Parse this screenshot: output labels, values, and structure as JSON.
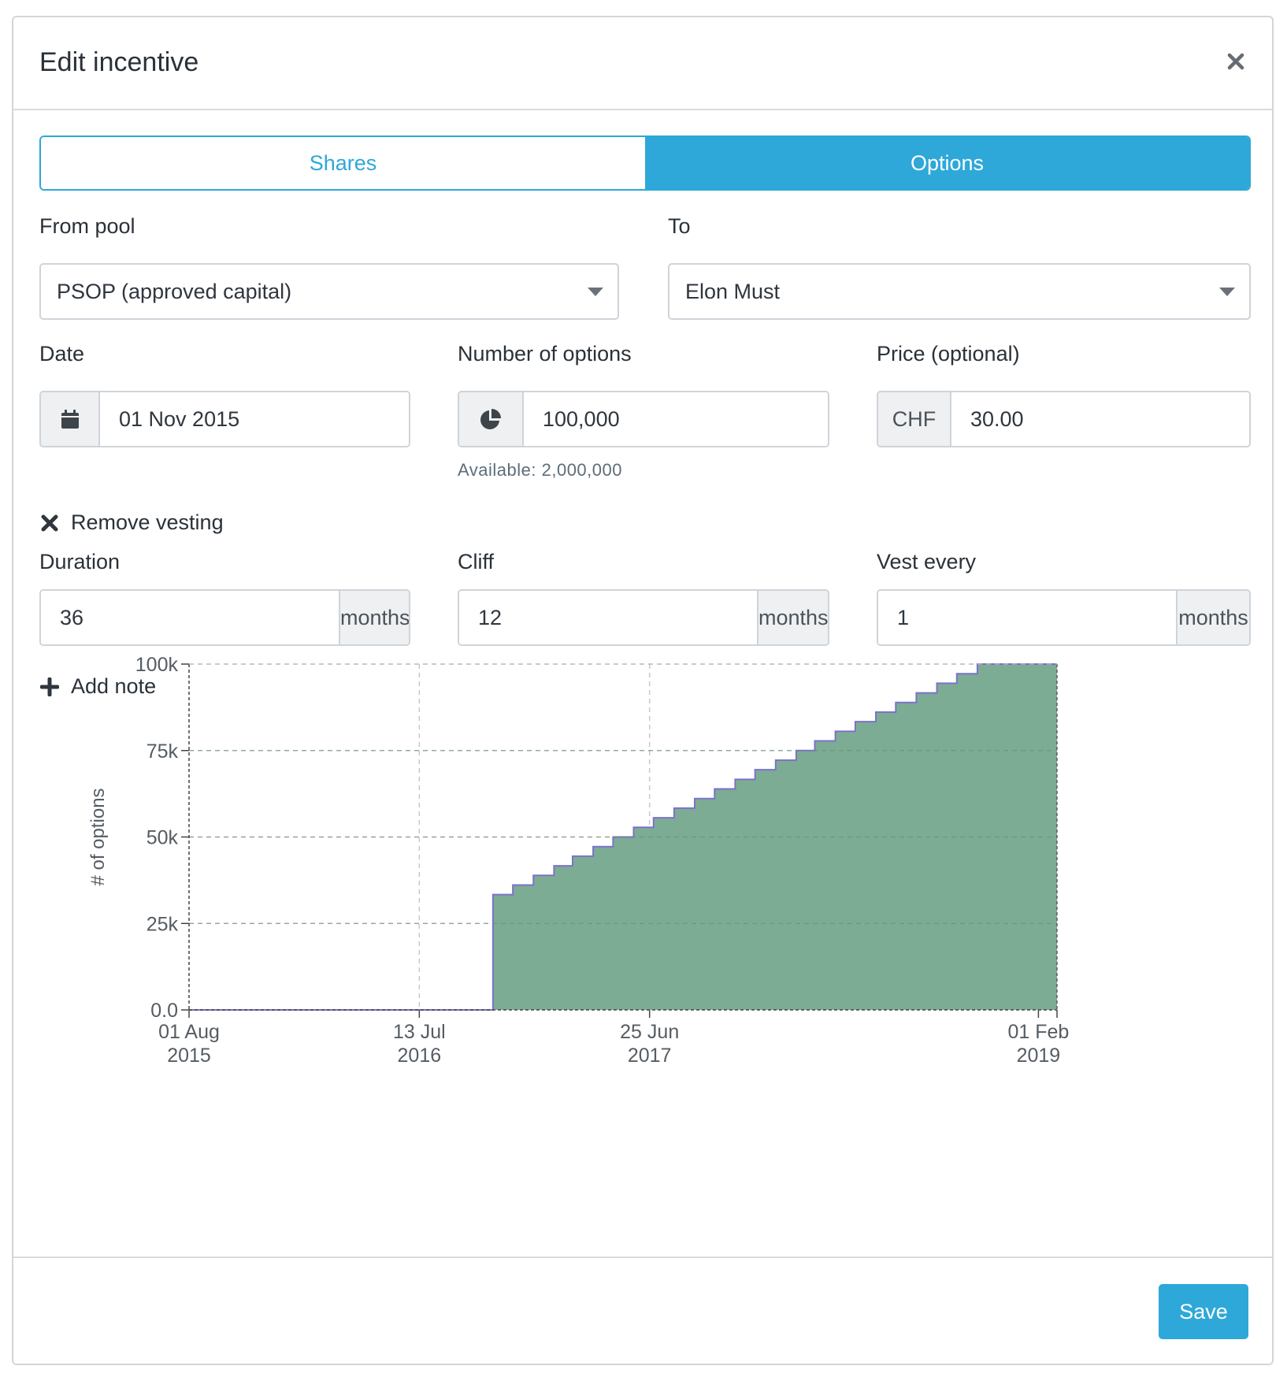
{
  "modal": {
    "title": "Edit incentive",
    "close_icon": "close-icon"
  },
  "tabs": [
    {
      "label": "Shares",
      "active": false
    },
    {
      "label": "Options",
      "active": true
    }
  ],
  "form": {
    "from_pool": {
      "label": "From pool",
      "value": "PSOP (approved capital)"
    },
    "to": {
      "label": "To",
      "value": "Elon Must"
    },
    "date": {
      "label": "Date",
      "value": "01 Nov 2015",
      "icon": "calendar-icon"
    },
    "number_of_options": {
      "label": "Number of options",
      "value": "100,000",
      "icon": "pie-chart-icon",
      "hint": "Available: 2,000,000"
    },
    "price": {
      "label": "Price (optional)",
      "currency": "CHF",
      "value": "30.00"
    },
    "remove_vesting": {
      "label": "Remove vesting",
      "icon": "x-icon"
    },
    "duration": {
      "label": "Duration",
      "value": "36",
      "unit": "months"
    },
    "cliff": {
      "label": "Cliff",
      "value": "12",
      "unit": "months"
    },
    "vest_every": {
      "label": "Vest every",
      "value": "1",
      "unit": "months"
    },
    "add_note": {
      "label": "Add note",
      "icon": "plus-icon"
    }
  },
  "chart_data": {
    "type": "area",
    "step": true,
    "ylabel": "# of options",
    "xlabel": "",
    "title": "",
    "ylim": [
      0,
      100000
    ],
    "xlim": [
      "2015-08-01",
      "2019-03-01"
    ],
    "y_ticks": [
      {
        "value": 0,
        "label": "0.0"
      },
      {
        "value": 25000,
        "label": "25k"
      },
      {
        "value": 50000,
        "label": "50k"
      },
      {
        "value": 75000,
        "label": "75k"
      },
      {
        "value": 100000,
        "label": "100k"
      }
    ],
    "x_ticks": [
      {
        "date": "2015-08-01",
        "line1": "01 Aug",
        "line2": "2015"
      },
      {
        "date": "2016-07-13",
        "line1": "13 Jul",
        "line2": "2016"
      },
      {
        "date": "2017-06-25",
        "line1": "25 Jun",
        "line2": "2017"
      },
      {
        "date": "2019-02-01",
        "line1": "01 Feb",
        "line2": "2019"
      }
    ],
    "grid": true,
    "fill_color": "#7dac94",
    "line_color": "#7b72c9",
    "series": [
      {
        "name": "",
        "grant_date": "2015-11-01",
        "total": 100000,
        "duration_months": 36,
        "cliff_months": 12,
        "vest_every_months": 1,
        "points": [
          [
            "2015-08-01",
            0
          ],
          [
            "2016-11-01",
            33333
          ],
          [
            "2016-12-01",
            36111
          ],
          [
            "2017-01-01",
            38889
          ],
          [
            "2017-02-01",
            41667
          ],
          [
            "2017-03-01",
            44444
          ],
          [
            "2017-04-01",
            47222
          ],
          [
            "2017-05-01",
            50000
          ],
          [
            "2017-06-01",
            52778
          ],
          [
            "2017-07-01",
            55556
          ],
          [
            "2017-08-01",
            58333
          ],
          [
            "2017-09-01",
            61111
          ],
          [
            "2017-10-01",
            63889
          ],
          [
            "2017-11-01",
            66667
          ],
          [
            "2017-12-01",
            69444
          ],
          [
            "2018-01-01",
            72222
          ],
          [
            "2018-02-01",
            75000
          ],
          [
            "2018-03-01",
            77778
          ],
          [
            "2018-04-01",
            80556
          ],
          [
            "2018-05-01",
            83333
          ],
          [
            "2018-06-01",
            86111
          ],
          [
            "2018-07-01",
            88889
          ],
          [
            "2018-08-01",
            91667
          ],
          [
            "2018-09-01",
            94444
          ],
          [
            "2018-10-01",
            97222
          ],
          [
            "2018-11-01",
            100000
          ],
          [
            "2019-03-01",
            100000
          ]
        ]
      }
    ]
  },
  "footer": {
    "save_label": "Save"
  }
}
